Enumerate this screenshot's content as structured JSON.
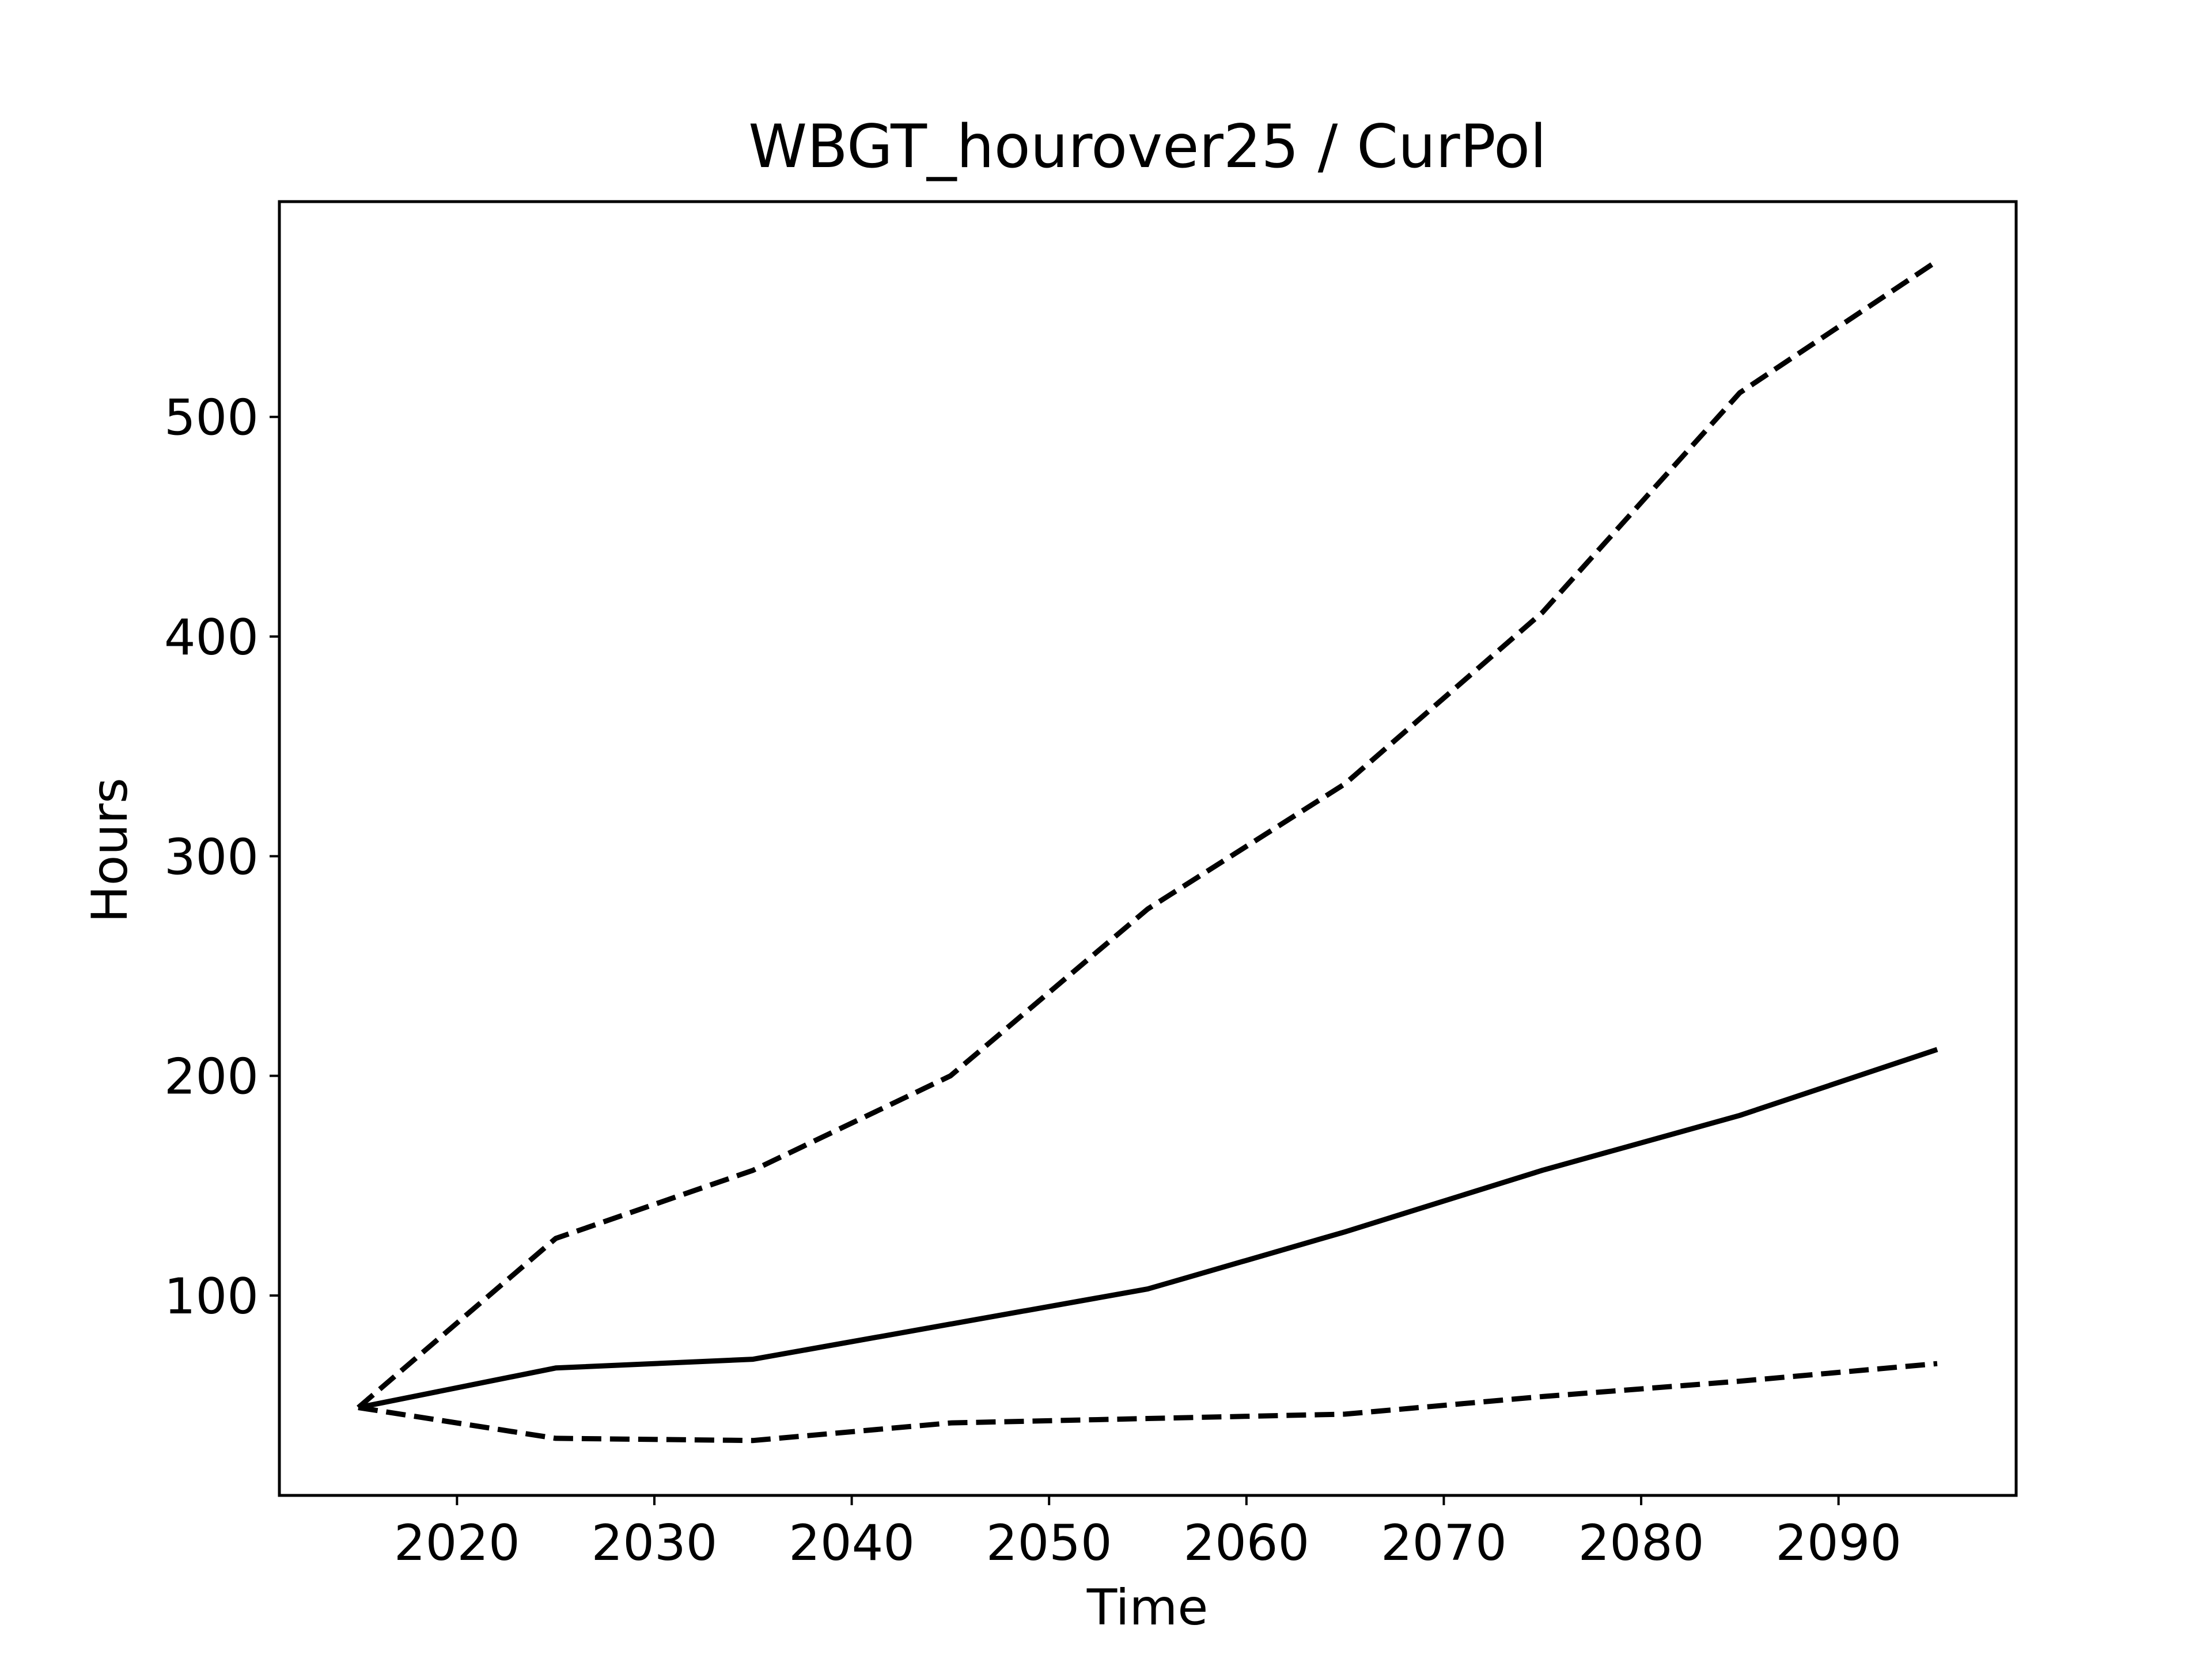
{
  "chart_data": {
    "type": "line",
    "title": "WBGT_hourover25 / CurPol",
    "xlabel": "Time",
    "ylabel": "Hours",
    "xlim": [
      2011,
      2099
    ],
    "ylim": [
      9,
      598
    ],
    "xticks": [
      2020,
      2030,
      2040,
      2050,
      2060,
      2070,
      2080,
      2090
    ],
    "yticks": [
      100,
      200,
      300,
      400,
      500
    ],
    "grid": false,
    "legend": "none",
    "x": [
      2015,
      2025,
      2035,
      2045,
      2055,
      2065,
      2075,
      2085,
      2095
    ],
    "series": [
      {
        "style": "dashed",
        "color": "#000000",
        "values": [
          49,
          126,
          157,
          200,
          276,
          333,
          411,
          511,
          571
        ]
      },
      {
        "style": "solid",
        "color": "#000000",
        "values": [
          49,
          67,
          71,
          87,
          103,
          129,
          157,
          182,
          212
        ]
      },
      {
        "style": "dashed",
        "color": "#000000",
        "values": [
          49,
          35,
          34,
          42,
          44,
          46,
          54,
          61,
          69
        ]
      }
    ]
  }
}
